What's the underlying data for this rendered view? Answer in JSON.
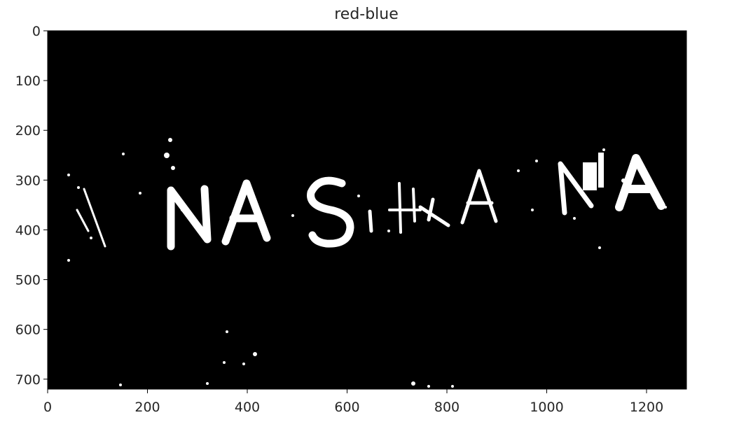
{
  "chart_data": {
    "type": "heatmap",
    "title": "red-blue",
    "xlabel": "",
    "ylabel": "",
    "xlim": [
      0,
      1280
    ],
    "ylim": [
      720,
      0
    ],
    "xticks": [
      0,
      200,
      400,
      600,
      800,
      1000,
      1200
    ],
    "yticks": [
      0,
      100,
      200,
      300,
      400,
      500,
      600,
      700
    ],
    "colormap": "binary",
    "colors": {
      "background": "#000000",
      "foreground": "#ffffff"
    },
    "grid": false
  }
}
